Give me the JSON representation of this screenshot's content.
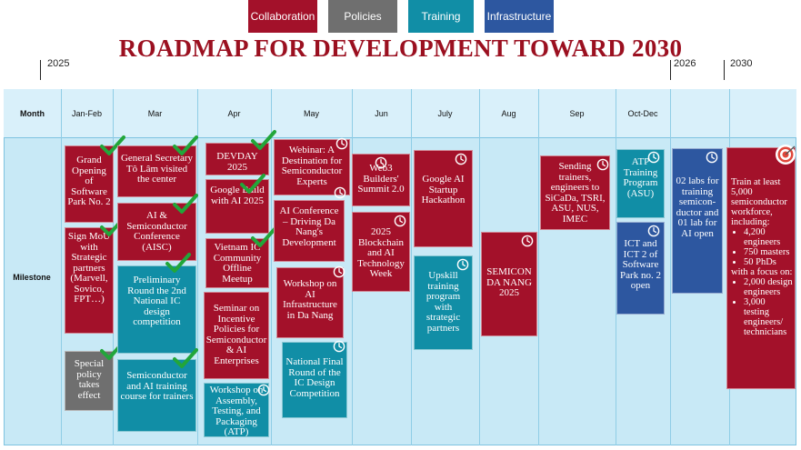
{
  "legend": {
    "collaboration": "Collaboration",
    "policies": "Policies",
    "training": "Training",
    "infrastructure": "Infrastructure"
  },
  "colors": {
    "collaboration": "#a3112a",
    "policies": "#6f6f6f",
    "training": "#118ea6",
    "infrastructure": "#2d57a0",
    "title": "#9b1020"
  },
  "title": "ROADMAP FOR DEVELOPMENT TOWARD 2030",
  "years": {
    "y2025": "2025",
    "y2026": "2026",
    "y2030": "2030"
  },
  "header": {
    "month_label": "Month",
    "months": [
      "Jan-Feb",
      "Mar",
      "Apr",
      "May",
      "Jun",
      "July",
      "Aug",
      "Sep",
      "Oct-Dec"
    ]
  },
  "row_label": "Milestone",
  "milestones": {
    "jan_grand_opening": "Grand Opening of Software Park No. 2",
    "jan_sign_mou": "Sign MoU with Strategic partners (Marvell, Sovico, FPT…)",
    "jan_special_policy": "Special policy takes effect",
    "mar_general_secretary": "General Secretary Tô Lâm visited the center",
    "mar_aisc": "AI & Semiconductor Conference (AISC)",
    "mar_preliminary_round": "Preliminary Round the 2nd National IC design competition",
    "mar_training_course": "Semiconductor and AI training course for trainers",
    "apr_devday": "DEVDAY 2025",
    "apr_google_build": "Google Build with AI 2025",
    "apr_vietnam_ic": "Vietnam IC Community Offline Meetup",
    "apr_seminar_incentive": "Seminar on Incentive Policies for Semiconductor & AI Enterprises",
    "apr_workshop_atp": "Workshop on Assembly, Testing, and Packaging (ATP) Training",
    "may_webinar": "Webinar: A Destination for Semiconductor Experts",
    "may_ai_conference": "AI Conference – Driving Da Nang's Development",
    "may_workshop_ai": "Workshop on AI Infrastructure in Da Nang",
    "may_national_final": "National Final Round of the IC Design Competition",
    "jun_web3": "Web3 Builders' Summit 2.0",
    "jun_blockchain": "2025 Blockchain and AI Technology Week",
    "jul_google_hackathon": "Google AI Startup Hackathon",
    "jul_upskill": "Upskill training program with strategic partners",
    "aug_semicon": "SEMICON DA NANG 2025",
    "sep_sending_trainers": "Sending trainers, engineers to SiCaDa, TSRI, ASU, NUS, IMEC",
    "oct_atp_training": "ATP Training Program (ASU)",
    "oct_ict_open": "ICT and ICT 2 of Software Park no. 2 open",
    "y2026_labs": "02 labs for training semicon-ductor and 01 lab for AI open",
    "y2030_intro": "Train at least 5,000 semiconductor workforce, including:",
    "y2030_items": [
      "4,200 engineers",
      "750 masters",
      "50 PhDs"
    ],
    "y2030_focus": "with a focus on:",
    "y2030_focus_items": [
      "2,000 design engineers",
      "3,000 testing engineers/ technicians"
    ]
  },
  "icons": {
    "done": "check-icon",
    "upcoming": "clock-icon",
    "goal": "target-icon"
  }
}
